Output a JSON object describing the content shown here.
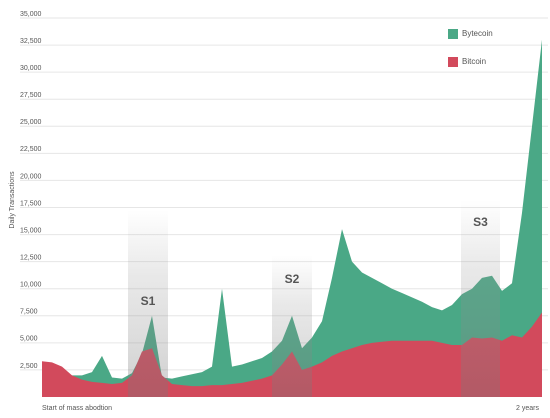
{
  "chart_data": {
    "type": "area",
    "y_label": "Daily Transactions",
    "categories": [
      "Start of mass abodtion",
      null,
      null,
      null,
      null,
      null,
      null,
      null,
      null,
      null,
      null,
      null,
      null,
      null,
      null,
      null,
      null,
      null,
      null,
      null,
      null,
      null,
      null,
      null,
      null,
      null,
      null,
      null,
      null,
      null,
      null,
      null,
      null,
      null,
      null,
      null,
      null,
      null,
      null,
      null,
      null,
      null,
      null,
      null,
      null,
      null,
      null,
      null,
      null,
      null,
      "2 years"
    ],
    "series": [
      {
        "name": "Bytecoin",
        "color": "#4aa886",
        "values": [
          1800,
          1900,
          1900,
          2000,
          2000,
          2300,
          3800,
          1800,
          1700,
          2200,
          4000,
          7500,
          1800,
          1700,
          1900,
          2100,
          2300,
          2800,
          10000,
          2800,
          3000,
          3300,
          3600,
          4200,
          5200,
          7500,
          4500,
          5500,
          7000,
          11000,
          15500,
          12500,
          11500,
          11000,
          10500,
          10000,
          9600,
          9200,
          8800,
          8300,
          8000,
          8500,
          9500,
          10000,
          11000,
          11200,
          9800,
          10500,
          17000,
          25000,
          33000
        ]
      },
      {
        "name": "Bitcoin",
        "color": "#d24a5c",
        "values": [
          3300,
          3200,
          2800,
          2000,
          1600,
          1400,
          1300,
          1200,
          1300,
          2000,
          4200,
          4500,
          2000,
          1200,
          1100,
          1000,
          1000,
          1100,
          1100,
          1200,
          1300,
          1500,
          1700,
          2000,
          3000,
          4200,
          2500,
          2800,
          3200,
          3800,
          4200,
          4500,
          4800,
          5000,
          5100,
          5200,
          5200,
          5200,
          5200,
          5200,
          5000,
          4800,
          4800,
          5500,
          5400,
          5500,
          5200,
          5700,
          5500,
          6500,
          7800
        ]
      }
    ],
    "annotations": [
      "S1",
      "S2",
      "S3"
    ],
    "ylim": [
      0,
      35000
    ],
    "yticks": [
      {
        "value": 2500,
        "label": "2,500"
      },
      {
        "value": 5000,
        "label": "5,000"
      },
      {
        "value": 7500,
        "label": "7,500"
      },
      {
        "value": 10000,
        "label": "10,000"
      },
      {
        "value": 12500,
        "label": "12,500"
      },
      {
        "value": 15000,
        "label": "15,000"
      },
      {
        "value": 17500,
        "label": "17,500"
      },
      {
        "value": 20000,
        "label": "20,000"
      },
      {
        "value": 22500,
        "label": "22,500"
      },
      {
        "value": 25000,
        "label": "25,000"
      },
      {
        "value": 27500,
        "label": "27,500"
      },
      {
        "value": 30000,
        "label": "30,000"
      },
      {
        "value": 32500,
        "label": "32,500"
      },
      {
        "value": 35000,
        "label": "35,000"
      }
    ],
    "grid": true,
    "legend": "top-right"
  }
}
